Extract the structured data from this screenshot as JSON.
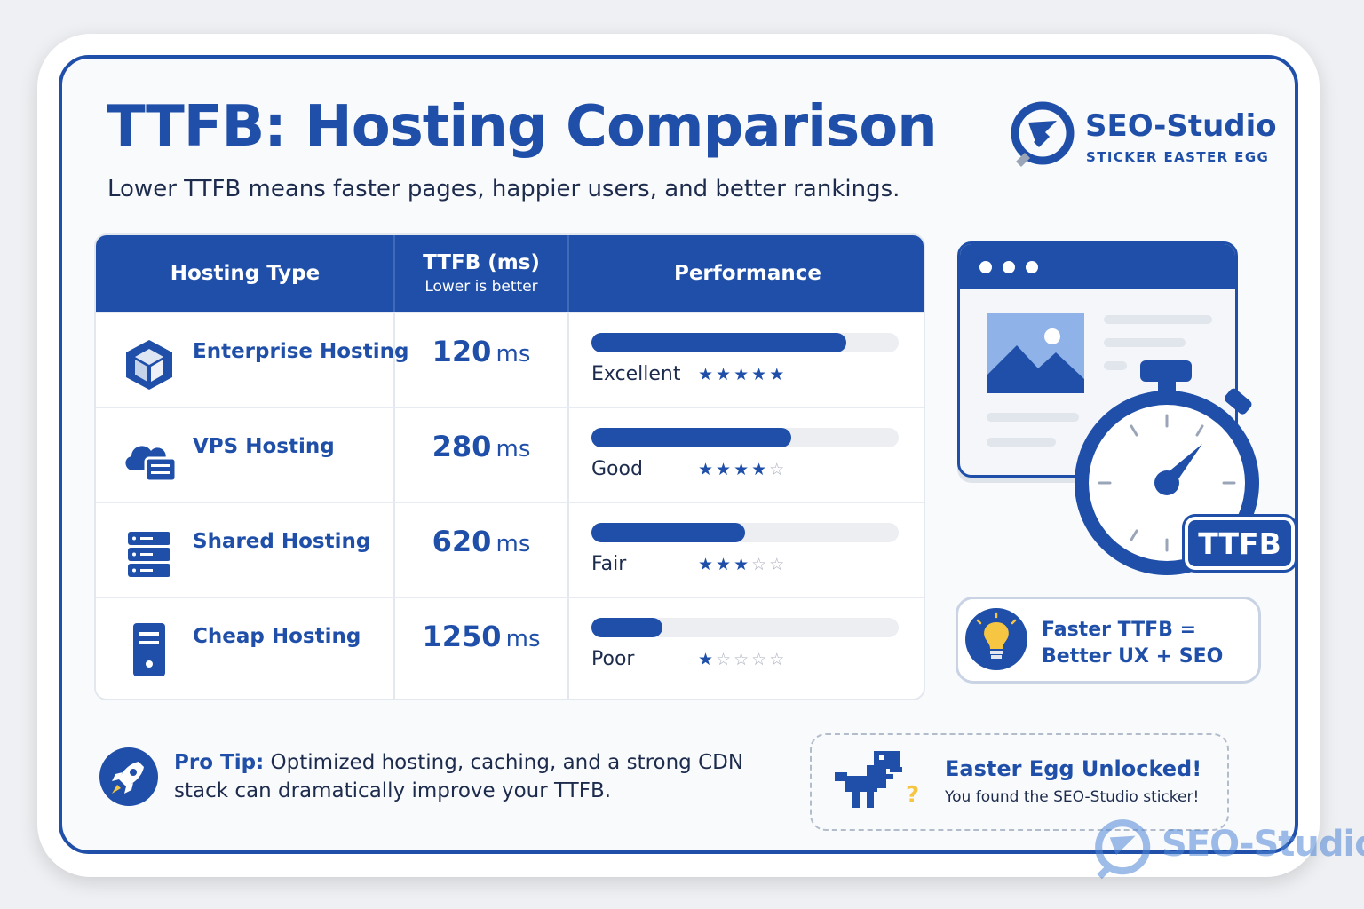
{
  "header": {
    "title": "TTFB: Hosting Comparison",
    "subtitle": "Lower TTFB means faster pages, happier users, and better rankings."
  },
  "brand": {
    "name": "SEO-Studio",
    "tagline": "STICKER EASTER EGG"
  },
  "table": {
    "columns": [
      {
        "label": "Hosting Type",
        "sub": ""
      },
      {
        "label": "TTFB (ms)",
        "sub": "Lower is better"
      },
      {
        "label": "Performance",
        "sub": ""
      }
    ],
    "rows": [
      {
        "icon": "cube-icon",
        "name": "Enterprise Hosting",
        "ttfb": "120",
        "unit": "ms",
        "bar_fraction": 0.83,
        "rating": "Excellent",
        "stars": 5
      },
      {
        "icon": "cloud-server-icon",
        "name": "VPS Hosting",
        "ttfb": "280",
        "unit": "ms",
        "bar_fraction": 0.65,
        "rating": "Good",
        "stars": 4
      },
      {
        "icon": "server-rack-icon",
        "name": "Shared Hosting",
        "ttfb": "620",
        "unit": "ms",
        "bar_fraction": 0.5,
        "rating": "Fair",
        "stars": 3
      },
      {
        "icon": "tower-pc-icon",
        "name": "Cheap Hosting",
        "ttfb": "1250",
        "unit": "ms",
        "bar_fraction": 0.23,
        "rating": "Poor",
        "stars": 1
      }
    ],
    "max_stars": 5
  },
  "illustration": {
    "badge": "TTFB"
  },
  "tip_box": {
    "line1": "Faster TTFB =",
    "line2": "Better UX + SEO"
  },
  "pro_tip": {
    "label": "Pro Tip:",
    "line1": " Optimized hosting, caching, and a strong CDN",
    "line2": "stack can dramatically improve your TTFB."
  },
  "easter_egg": {
    "title": "Easter Egg Unlocked!",
    "message": "You found the SEO-Studio sticker!"
  },
  "watermark": {
    "text": "SEO-Studio"
  },
  "colors": {
    "primary": "#1f4fa8",
    "text_dark": "#1d2b4d",
    "track": "#eceef2",
    "star_off": "#a9b0bd",
    "bulb_yellow": "#f6c542"
  }
}
